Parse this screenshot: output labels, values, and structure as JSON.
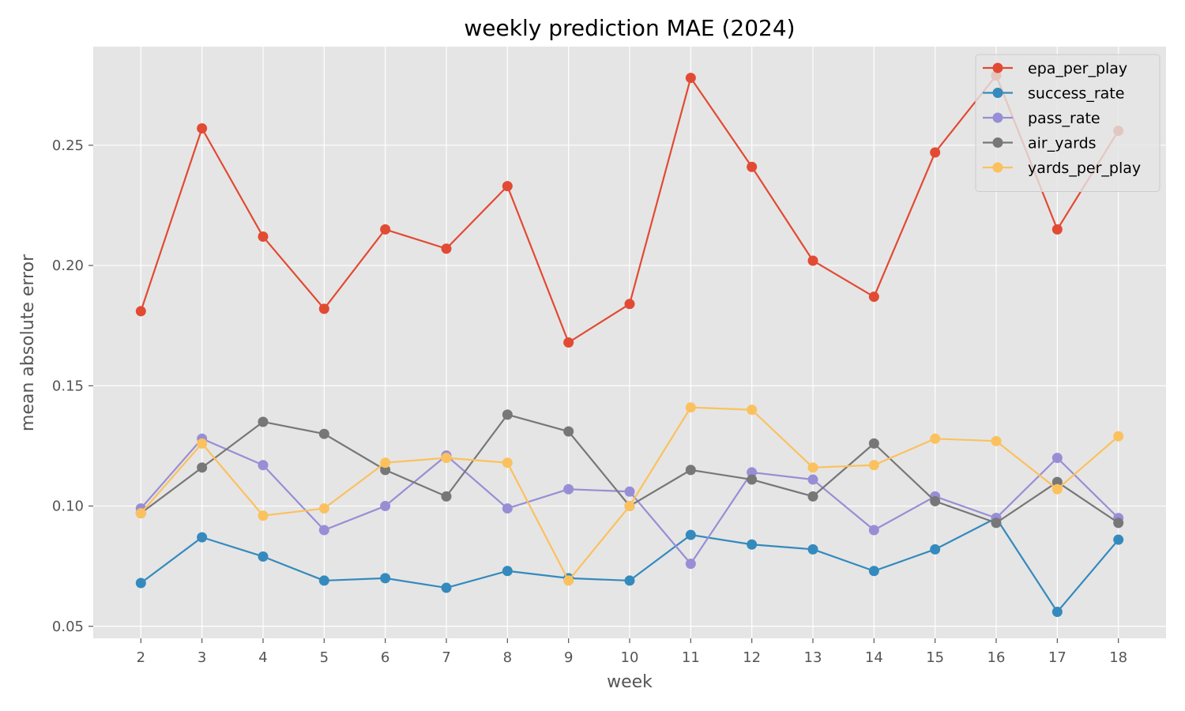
{
  "chart_data": {
    "type": "line",
    "title": "weekly prediction MAE (2024)",
    "xlabel": "week",
    "ylabel": "mean absolute error",
    "x": [
      2,
      3,
      4,
      5,
      6,
      7,
      8,
      9,
      10,
      11,
      12,
      13,
      14,
      15,
      16,
      17,
      18
    ],
    "xticks": [
      "2",
      "3",
      "4",
      "5",
      "6",
      "7",
      "8",
      "9",
      "10",
      "11",
      "12",
      "13",
      "14",
      "15",
      "16",
      "17",
      "18"
    ],
    "xlim": [
      1.22,
      18.78
    ],
    "ylim": [
      0.045,
      0.291
    ],
    "yticks": [
      {
        "value": 0.05,
        "label": "0.05"
      },
      {
        "value": 0.1,
        "label": "0.10"
      },
      {
        "value": 0.15,
        "label": "0.15"
      },
      {
        "value": 0.2,
        "label": "0.20"
      },
      {
        "value": 0.25,
        "label": "0.25"
      }
    ],
    "grid": true,
    "legend_position": "top-right",
    "series": [
      {
        "name": "epa_per_play",
        "color": "#E24A33",
        "values": [
          0.181,
          0.257,
          0.212,
          0.182,
          0.215,
          0.207,
          0.233,
          0.168,
          0.184,
          0.278,
          0.241,
          0.202,
          0.187,
          0.247,
          0.279,
          0.215,
          0.256
        ]
      },
      {
        "name": "success_rate",
        "color": "#348ABD",
        "values": [
          0.068,
          0.087,
          0.079,
          0.069,
          0.07,
          0.066,
          0.073,
          0.07,
          0.069,
          0.088,
          0.084,
          0.082,
          0.073,
          0.082,
          0.095,
          0.056,
          0.086
        ]
      },
      {
        "name": "pass_rate",
        "color": "#988ED5",
        "values": [
          0.099,
          0.128,
          0.117,
          0.09,
          0.1,
          0.121,
          0.099,
          0.107,
          0.106,
          0.076,
          0.114,
          0.111,
          0.09,
          0.104,
          0.095,
          0.12,
          0.095
        ]
      },
      {
        "name": "air_yards",
        "color": "#777777",
        "values": [
          0.097,
          0.116,
          0.135,
          0.13,
          0.115,
          0.104,
          0.138,
          0.131,
          0.1,
          0.115,
          0.111,
          0.104,
          0.126,
          0.102,
          0.093,
          0.11,
          0.093
        ]
      },
      {
        "name": "yards_per_play",
        "color": "#FBC15E",
        "values": [
          0.097,
          0.126,
          0.096,
          0.099,
          0.118,
          0.12,
          0.118,
          0.069,
          0.1,
          0.141,
          0.14,
          0.116,
          0.117,
          0.128,
          0.127,
          0.107,
          0.129
        ]
      }
    ]
  }
}
